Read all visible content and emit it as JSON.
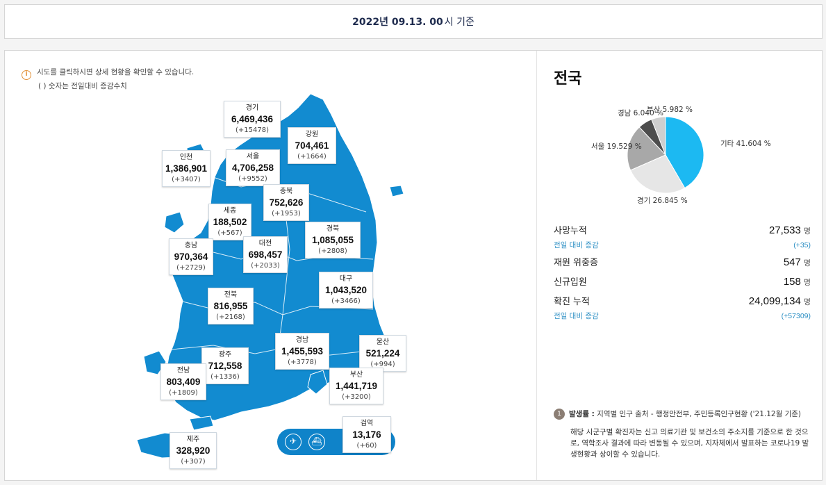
{
  "header": {
    "date": "2022년 09.13. 00",
    "suffix": "시 기준"
  },
  "notice": {
    "line1": "시도를 클릭하시면 상세 현황을 확인할 수 있습니다.",
    "line2": "( ) 숫자는 전일대비 증감수치"
  },
  "colors": {
    "map": "#128bd0",
    "accent": "#2c8fc4",
    "pie_main": "#1cb9f2"
  },
  "regions": {
    "gyeonggi": {
      "name": "경기",
      "value": "6,469,436",
      "diff": "(+15478)"
    },
    "gangwon": {
      "name": "강원",
      "value": "704,461",
      "diff": "(+1664)"
    },
    "incheon": {
      "name": "인천",
      "value": "1,386,901",
      "diff": "(+3407)"
    },
    "seoul": {
      "name": "서울",
      "value": "4,706,258",
      "diff": "(+9552)"
    },
    "chungbuk": {
      "name": "충북",
      "value": "752,626",
      "diff": "(+1953)"
    },
    "sejong": {
      "name": "세종",
      "value": "188,502",
      "diff": "(+567)"
    },
    "gyeongbuk": {
      "name": "경북",
      "value": "1,085,055",
      "diff": "(+2808)"
    },
    "chungnam": {
      "name": "충남",
      "value": "970,364",
      "diff": "(+2729)"
    },
    "daejeon": {
      "name": "대전",
      "value": "698,457",
      "diff": "(+2033)"
    },
    "daegu": {
      "name": "대구",
      "value": "1,043,520",
      "diff": "(+3466)"
    },
    "jeonbuk": {
      "name": "전북",
      "value": "816,955",
      "diff": "(+2168)"
    },
    "gyeongnam": {
      "name": "경남",
      "value": "1,455,593",
      "diff": "(+3778)"
    },
    "ulsan": {
      "name": "울산",
      "value": "521,224",
      "diff": "(+994)"
    },
    "gwangju": {
      "name": "광주",
      "value": "712,558",
      "diff": "(+1336)"
    },
    "jeonnam": {
      "name": "전남",
      "value": "803,409",
      "diff": "(+1809)"
    },
    "busan": {
      "name": "부산",
      "value": "1,441,719",
      "diff": "(+3200)"
    },
    "jeju": {
      "name": "제주",
      "value": "328,920",
      "diff": "(+307)"
    },
    "quarantine": {
      "name": "검역",
      "value": "13,176",
      "diff": "(+60)"
    }
  },
  "icons": {
    "airport": "airplane-icon",
    "port": "ship-icon"
  },
  "side": {
    "title": "전국",
    "stats": {
      "death_label": "사망누적",
      "death_value": "27,533",
      "death_unit": "명",
      "death_diff_label": "전일 대비 증감",
      "death_diff_value": "(+35)",
      "severe_label": "재원 위중증",
      "severe_value": "547",
      "severe_unit": "명",
      "admit_label": "신규입원",
      "admit_value": "158",
      "admit_unit": "명",
      "confirm_label": "확진 누적",
      "confirm_value": "24,099,134",
      "confirm_unit": "명",
      "confirm_diff_label": "전일 대비 증감",
      "confirm_diff_value": "(+57309)"
    },
    "footnote": {
      "num": "1",
      "head_bold": "발생률 :",
      "head_rest": " 지역별 인구 출처 - 행정안전부, 주민등록인구현황 ('21.12월 기준)",
      "desc": "해당 시군구별 확진자는 신고 의료기관 및 보건소의 주소지를 기준으로 한 것으로, 역학조사 결과에 따라 변동될 수 있으며, 지자체에서 발표하는 코로나19 발생현황과 상이할 수 있습니다."
    }
  },
  "chart_data": {
    "type": "pie",
    "slices": [
      {
        "label": "기타 41.604 %",
        "value": 41.604,
        "color": "#1cb9f2"
      },
      {
        "label": "경기 26.845 %",
        "value": 26.845,
        "color": "#e6e6e6"
      },
      {
        "label": "서울 19.529 %",
        "value": 19.529,
        "color": "#a8a8a8"
      },
      {
        "label": "경남 6.040 %",
        "value": 6.04,
        "color": "#4d4d4d"
      },
      {
        "label": "부산 5.982 %",
        "value": 5.982,
        "color": "#cfcfcf"
      }
    ]
  }
}
